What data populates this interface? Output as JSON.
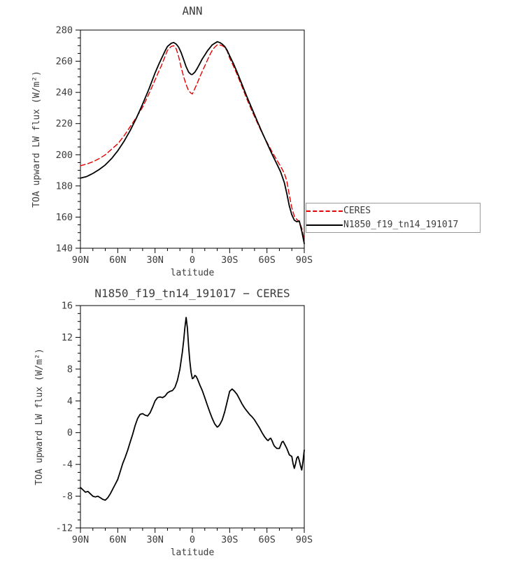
{
  "page": {
    "background": "#ffffff",
    "text_color": "#3c3c3c",
    "frame_color": "#000000"
  },
  "chart_data": [
    {
      "type": "line",
      "title": "ANN",
      "xlabel": "latitude",
      "ylabel": "TOA upward LW flux (W/m²)",
      "xlim": [
        90,
        -90
      ],
      "ylim": [
        140,
        280
      ],
      "grid": false,
      "legend_position": "right-outside",
      "xticks": {
        "values": [
          90,
          60,
          30,
          0,
          -30,
          -60,
          -90
        ],
        "labels": [
          "90N",
          "60N",
          "30N",
          "0",
          "30S",
          "60S",
          "90S"
        ],
        "minor_step": 10
      },
      "yticks": {
        "values": [
          140,
          160,
          180,
          200,
          220,
          240,
          260,
          280
        ],
        "labels": [
          "140",
          "160",
          "180",
          "200",
          "220",
          "240",
          "260",
          "280"
        ],
        "minor_step": 5
      },
      "series": [
        {
          "name": "CERES",
          "color": "#e60000",
          "style": "dashed",
          "x": [
            90,
            85,
            80,
            75,
            70,
            65,
            60,
            55,
            50,
            45,
            40,
            35,
            30,
            27,
            25,
            22,
            20,
            17,
            15,
            13,
            11,
            9,
            7,
            5,
            3,
            1,
            0,
            -2,
            -4,
            -6,
            -8,
            -10,
            -12,
            -14,
            -16,
            -18,
            -20,
            -22,
            -24,
            -26,
            -28,
            -30,
            -33,
            -36,
            -40,
            -44,
            -48,
            -52,
            -56,
            -60,
            -64,
            -68,
            -71,
            -74,
            -76,
            -78,
            -80,
            -82,
            -84,
            -86,
            -88,
            -90
          ],
          "y": [
            193,
            194,
            195.5,
            197.5,
            200,
            203.5,
            207,
            212,
            218,
            224,
            230.5,
            239,
            248,
            253.5,
            257,
            263,
            267,
            269.5,
            270,
            268,
            263,
            256,
            250,
            245,
            241,
            239.5,
            239,
            242.5,
            246,
            250,
            253.5,
            257,
            260.5,
            264,
            267,
            269,
            270.5,
            270.5,
            270,
            269,
            266.5,
            262,
            257,
            251.5,
            243.5,
            235.5,
            228,
            221,
            214,
            208,
            202,
            196.5,
            192.5,
            188,
            183,
            174,
            166,
            160.5,
            158.5,
            157,
            153,
            145
          ]
        },
        {
          "name": "N1850_f19_tn14_191017",
          "color": "#000000",
          "style": "solid",
          "x": [
            90,
            85,
            80,
            75,
            70,
            65,
            60,
            55,
            50,
            45,
            40,
            35,
            30,
            27,
            25,
            22,
            20,
            17,
            15,
            13,
            11,
            9,
            7,
            5,
            3,
            1,
            0,
            -2,
            -4,
            -6,
            -8,
            -10,
            -12,
            -14,
            -16,
            -18,
            -20,
            -22,
            -24,
            -26,
            -28,
            -30,
            -33,
            -36,
            -40,
            -44,
            -48,
            -52,
            -56,
            -60,
            -64,
            -68,
            -71,
            -74,
            -76,
            -78,
            -80,
            -82,
            -84,
            -86,
            -88,
            -90
          ],
          "y": [
            185,
            186,
            188,
            190.5,
            193.5,
            197.5,
            202.5,
            208.5,
            215.5,
            223.5,
            232.5,
            242,
            252.5,
            258,
            261.5,
            266.5,
            269.5,
            271.5,
            272,
            271,
            269,
            265.5,
            261,
            256.5,
            253,
            251.5,
            251.5,
            253,
            255.5,
            258.5,
            261.5,
            264,
            266.5,
            268.5,
            270.5,
            271.5,
            272.5,
            272,
            271,
            269.5,
            267,
            263.5,
            258.5,
            253,
            245,
            237,
            229.5,
            222,
            214.5,
            207.5,
            200.5,
            194,
            189,
            182,
            175,
            167,
            161.5,
            158,
            157,
            157.5,
            151,
            143
          ]
        }
      ]
    },
    {
      "type": "line",
      "title": "N1850_f19_tn14_191017 − CERES",
      "xlabel": "latitude",
      "ylabel": "TOA upward LW flux (W/m²)",
      "xlim": [
        90,
        -90
      ],
      "ylim": [
        -12,
        16
      ],
      "grid": false,
      "legend_position": "none",
      "xticks": {
        "values": [
          90,
          60,
          30,
          0,
          -30,
          -60,
          -90
        ],
        "labels": [
          "90N",
          "60N",
          "30N",
          "0",
          "30S",
          "60S",
          "90S"
        ],
        "minor_step": 10
      },
      "yticks": {
        "values": [
          -12,
          -8,
          -4,
          0,
          4,
          8,
          12,
          16
        ],
        "labels": [
          "-12",
          "-8",
          "-4",
          "0",
          "4",
          "8",
          "12",
          "16"
        ],
        "minor_step": 1
      },
      "series": [
        {
          "name": "N1850_f19_tn14_191017 minus CERES",
          "color": "#000000",
          "style": "solid",
          "x": [
            90,
            88,
            86,
            84,
            82,
            80,
            78,
            76,
            74,
            72,
            70,
            68,
            66,
            64,
            62,
            60,
            58,
            56,
            54,
            52,
            50,
            48,
            46,
            44,
            42,
            40,
            38,
            36,
            34,
            32,
            30,
            28,
            26,
            24,
            22,
            20,
            18,
            16,
            14,
            12,
            10,
            8,
            7,
            6,
            5,
            4,
            3,
            2,
            1,
            0,
            -1,
            -2,
            -3,
            -4,
            -5,
            -6,
            -8,
            -10,
            -12,
            -14,
            -16,
            -18,
            -20,
            -21,
            -22,
            -24,
            -26,
            -28,
            -30,
            -32,
            -34,
            -36,
            -38,
            -40,
            -42,
            -44,
            -46,
            -48,
            -50,
            -52,
            -54,
            -56,
            -58,
            -60,
            -61,
            -62,
            -63,
            -64,
            -65,
            -66,
            -68,
            -70,
            -71,
            -72,
            -73,
            -74,
            -76,
            -78,
            -80,
            -81,
            -82,
            -83,
            -84,
            -85,
            -86,
            -87,
            -88,
            -89,
            -90
          ],
          "y": [
            -6.9,
            -7.2,
            -7.5,
            -7.4,
            -7.7,
            -8.0,
            -8.1,
            -8.0,
            -8.2,
            -8.4,
            -8.5,
            -8.2,
            -7.7,
            -7.1,
            -6.5,
            -5.9,
            -4.9,
            -3.9,
            -3.1,
            -2.2,
            -1.2,
            -0.2,
            0.9,
            1.8,
            2.3,
            2.4,
            2.2,
            2.1,
            2.5,
            3.2,
            4.0,
            4.4,
            4.5,
            4.4,
            4.6,
            5.0,
            5.2,
            5.3,
            5.7,
            6.6,
            8.0,
            10.2,
            11.6,
            13.2,
            14.5,
            13.2,
            10.8,
            9.0,
            7.6,
            6.8,
            6.9,
            7.2,
            7.1,
            6.8,
            6.4,
            6.0,
            5.3,
            4.4,
            3.5,
            2.6,
            1.8,
            1.1,
            0.7,
            0.8,
            1.0,
            1.6,
            2.6,
            3.9,
            5.2,
            5.5,
            5.2,
            4.8,
            4.2,
            3.6,
            3.1,
            2.7,
            2.3,
            2.0,
            1.6,
            1.1,
            0.6,
            0.0,
            -0.5,
            -0.9,
            -1.0,
            -0.8,
            -0.7,
            -1.0,
            -1.4,
            -1.7,
            -2.0,
            -2.0,
            -1.6,
            -1.2,
            -1.1,
            -1.4,
            -2.0,
            -2.8,
            -3.0,
            -3.9,
            -4.5,
            -3.9,
            -3.2,
            -3.0,
            -3.5,
            -4.2,
            -4.7,
            -3.6,
            -2.2
          ]
        }
      ]
    }
  ],
  "legend": {
    "entries": [
      {
        "label": "CERES"
      },
      {
        "label": "N1850_f19_tn14_191017"
      }
    ]
  }
}
